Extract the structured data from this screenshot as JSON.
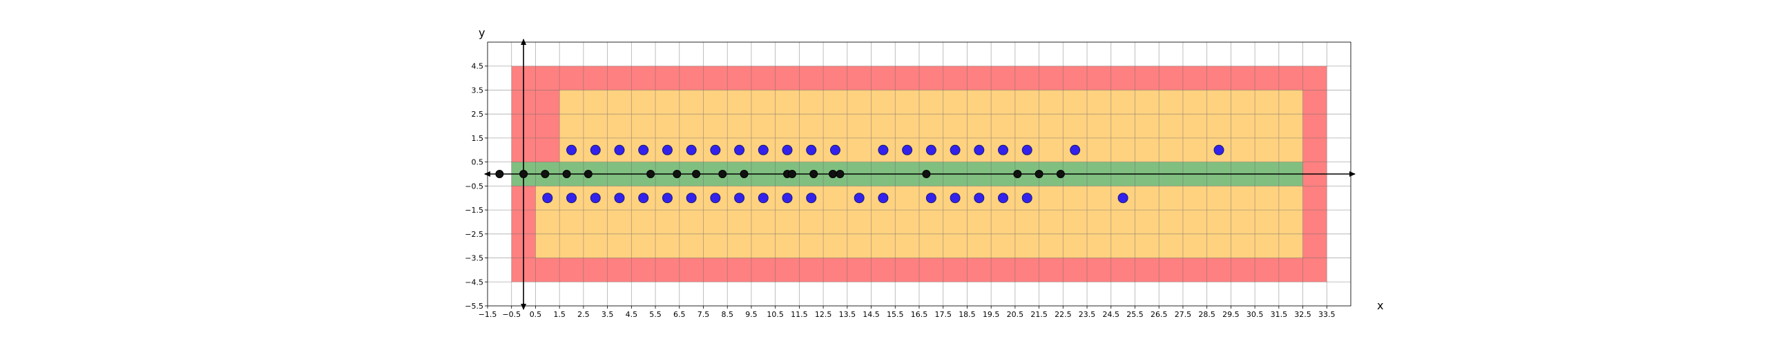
{
  "chart_data": {
    "type": "scatter",
    "title": "",
    "xlabel": "x",
    "ylabel": "y",
    "xlim": [
      -1.5,
      34.5
    ],
    "ylim": [
      -5.5,
      5.5
    ],
    "grid": true,
    "x_ticks": [
      -1.5,
      -0.5,
      0.5,
      1.5,
      2.5,
      3.5,
      4.5,
      5.5,
      6.5,
      7.5,
      8.5,
      9.5,
      10.5,
      11.5,
      12.5,
      13.5,
      14.5,
      15.5,
      16.5,
      17.5,
      18.5,
      19.5,
      20.5,
      21.5,
      22.5,
      23.5,
      24.5,
      25.5,
      26.5,
      27.5,
      28.5,
      29.5,
      30.5,
      31.5,
      32.5,
      33.5
    ],
    "y_ticks": [
      4.5,
      3.5,
      2.5,
      1.5,
      0.5,
      -0.5,
      -1.5,
      -2.5,
      -3.5,
      -4.5,
      -5.5
    ],
    "regions": [
      {
        "name": "outer",
        "color": "#ff8080",
        "x": [
          -0.5,
          33.5
        ],
        "y": [
          -4.5,
          4.5
        ]
      },
      {
        "name": "inner-upper",
        "color": "#ffd280",
        "x": [
          1.5,
          32.5
        ],
        "y": [
          0.5,
          3.5
        ]
      },
      {
        "name": "inner-lower",
        "color": "#ffd280",
        "x": [
          0.5,
          32.5
        ],
        "y": [
          -3.5,
          -0.5
        ]
      },
      {
        "name": "band",
        "color": "#80bf80",
        "x": [
          -0.5,
          32.5
        ],
        "y": [
          -0.5,
          0.5
        ]
      }
    ],
    "series": [
      {
        "color": "#3322ee",
        "points": [
          [
            2,
            1
          ],
          [
            3,
            1
          ],
          [
            4,
            1
          ],
          [
            5,
            1
          ],
          [
            6,
            1
          ],
          [
            7,
            1
          ],
          [
            8,
            1
          ],
          [
            9,
            1
          ],
          [
            10,
            1
          ],
          [
            11,
            1
          ],
          [
            12,
            1
          ],
          [
            13,
            1
          ],
          [
            15,
            1
          ],
          [
            16,
            1
          ],
          [
            17,
            1
          ],
          [
            18,
            1
          ],
          [
            19,
            1
          ],
          [
            20,
            1
          ],
          [
            21,
            1
          ],
          [
            23,
            1
          ],
          [
            29,
            1
          ],
          [
            1,
            -1
          ],
          [
            2,
            -1
          ],
          [
            3,
            -1
          ],
          [
            4,
            -1
          ],
          [
            5,
            -1
          ],
          [
            6,
            -1
          ],
          [
            7,
            -1
          ],
          [
            8,
            -1
          ],
          [
            9,
            -1
          ],
          [
            10,
            -1
          ],
          [
            11,
            -1
          ],
          [
            12,
            -1
          ],
          [
            14,
            -1
          ],
          [
            15,
            -1
          ],
          [
            17,
            -1
          ],
          [
            18,
            -1
          ],
          [
            19,
            -1
          ],
          [
            20,
            -1
          ],
          [
            21,
            -1
          ],
          [
            25,
            -1
          ]
        ]
      },
      {
        "color": "#111111",
        "points": [
          [
            -1,
            0
          ],
          [
            0,
            0
          ],
          [
            0.9,
            0
          ],
          [
            1.8,
            0
          ],
          [
            2.7,
            0
          ],
          [
            5.3,
            0
          ],
          [
            6.4,
            0
          ],
          [
            7.2,
            0
          ],
          [
            8.3,
            0
          ],
          [
            9.2,
            0
          ],
          [
            11.0,
            0
          ],
          [
            11.2,
            0
          ],
          [
            12.1,
            0
          ],
          [
            12.9,
            0
          ],
          [
            13.2,
            0
          ],
          [
            16.8,
            0
          ],
          [
            20.6,
            0
          ],
          [
            21.5,
            0
          ],
          [
            22.4,
            0
          ]
        ]
      }
    ]
  }
}
